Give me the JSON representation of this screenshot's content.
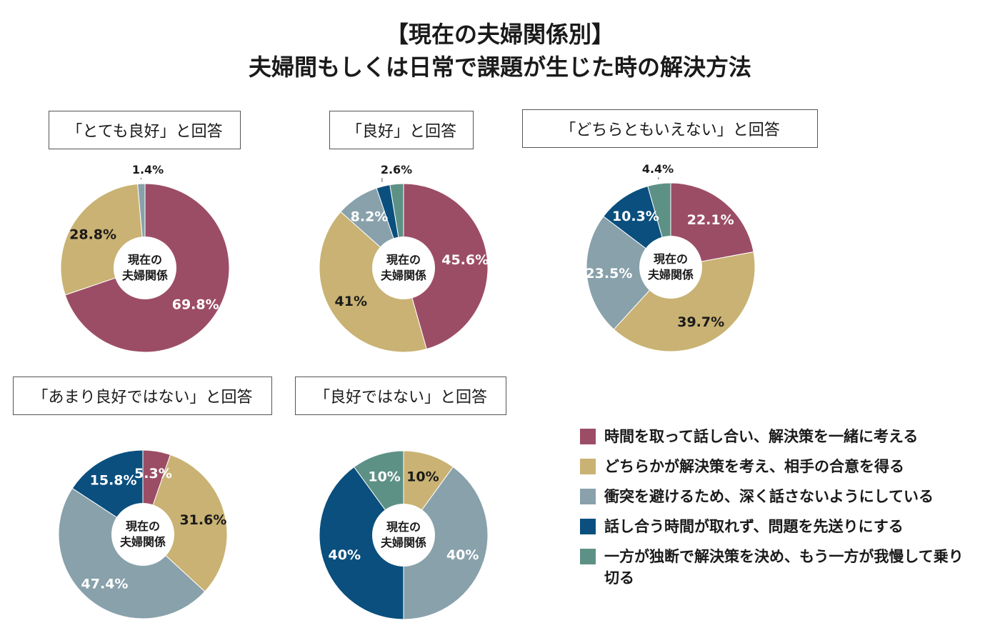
{
  "title": {
    "line1": "【現在の夫婦関係別】",
    "line2": "夫婦間もしくは日常で課題が生じた時の解決方法"
  },
  "center_label": [
    "現在の",
    "夫婦関係"
  ],
  "colors": [
    "#9c4d66",
    "#c9b273",
    "#88a1ab",
    "#0a4f7e",
    "#5e9186"
  ],
  "legend": [
    "時間を取って話し合い、解決策を一緒に考える",
    "どちらかが解決策を考え、相手の合意を得る",
    "衝突を避けるため、深く話さないようにしている",
    "話し合う時間が取れず、問題を先送りにする",
    "一方が独断で解決策を決め、もう一方が我慢して乗り切る"
  ],
  "chart_data": [
    {
      "type": "pie",
      "title": "「とても良好」と回答",
      "categories": [
        "時間を取って話し合い、解決策を一緒に考える",
        "どちらかが解決策を考え、相手の合意を得る",
        "衝突を避けるため、深く話さないようにしている",
        "話し合う時間が取れず、問題を先送りにする",
        "一方が独断で解決策を決め、もう一方が我慢して乗り切る"
      ],
      "values": [
        69.8,
        28.8,
        1.4,
        0,
        0
      ],
      "labels": [
        "69.8%",
        "28.8%",
        "1.4%",
        "",
        ""
      ]
    },
    {
      "type": "pie",
      "title": "「良好」と回答",
      "categories": [
        "時間を取って話し合い、解決策を一緒に考える",
        "どちらかが解決策を考え、相手の合意を得る",
        "衝突を避けるため、深く話さないようにしている",
        "話し合う時間が取れず、問題を先送りにする",
        "一方が独断で解決策を決め、もう一方が我慢して乗り切る"
      ],
      "values": [
        45.6,
        41,
        8.2,
        2.6,
        2.6
      ],
      "labels": [
        "45.6%",
        "41%",
        "8.2%",
        "2.6%",
        ""
      ]
    },
    {
      "type": "pie",
      "title": "「どちらともいえない」と回答",
      "categories": [
        "時間を取って話し合い、解決策を一緒に考える",
        "どちらかが解決策を考え、相手の合意を得る",
        "衝突を避けるため、深く話さないようにしている",
        "話し合う時間が取れず、問題を先送りにする",
        "一方が独断で解決策を決め、もう一方が我慢して乗り切る"
      ],
      "values": [
        22.1,
        39.7,
        23.5,
        10.3,
        4.4
      ],
      "labels": [
        "22.1%",
        "39.7%",
        "23.5%",
        "10.3%",
        "4.4%"
      ]
    },
    {
      "type": "pie",
      "title": "「あまり良好ではない」と回答",
      "categories": [
        "時間を取って話し合い、解決策を一緒に考える",
        "どちらかが解決策を考え、相手の合意を得る",
        "衝突を避けるため、深く話さないようにしている",
        "話し合う時間が取れず、問題を先送りにする",
        "一方が独断で解決策を決め、もう一方が我慢して乗り切る"
      ],
      "values": [
        5.3,
        31.6,
        47.4,
        15.8,
        0
      ],
      "labels": [
        "5.3%",
        "31.6%",
        "47.4%",
        "15.8%",
        ""
      ]
    },
    {
      "type": "pie",
      "title": "「良好ではない」と回答",
      "categories": [
        "時間を取って話し合い、解決策を一緒に考える",
        "どちらかが解決策を考え、相手の合意を得る",
        "衝突を避けるため、深く話さないようにしている",
        "話し合う時間が取れず、問題を先送りにする",
        "一方が独断で解決策を決め、もう一方が我慢して乗り切る"
      ],
      "values": [
        0,
        10,
        40,
        40,
        10
      ],
      "labels": [
        "",
        "10%",
        "40%",
        "40%",
        "10%"
      ]
    }
  ]
}
